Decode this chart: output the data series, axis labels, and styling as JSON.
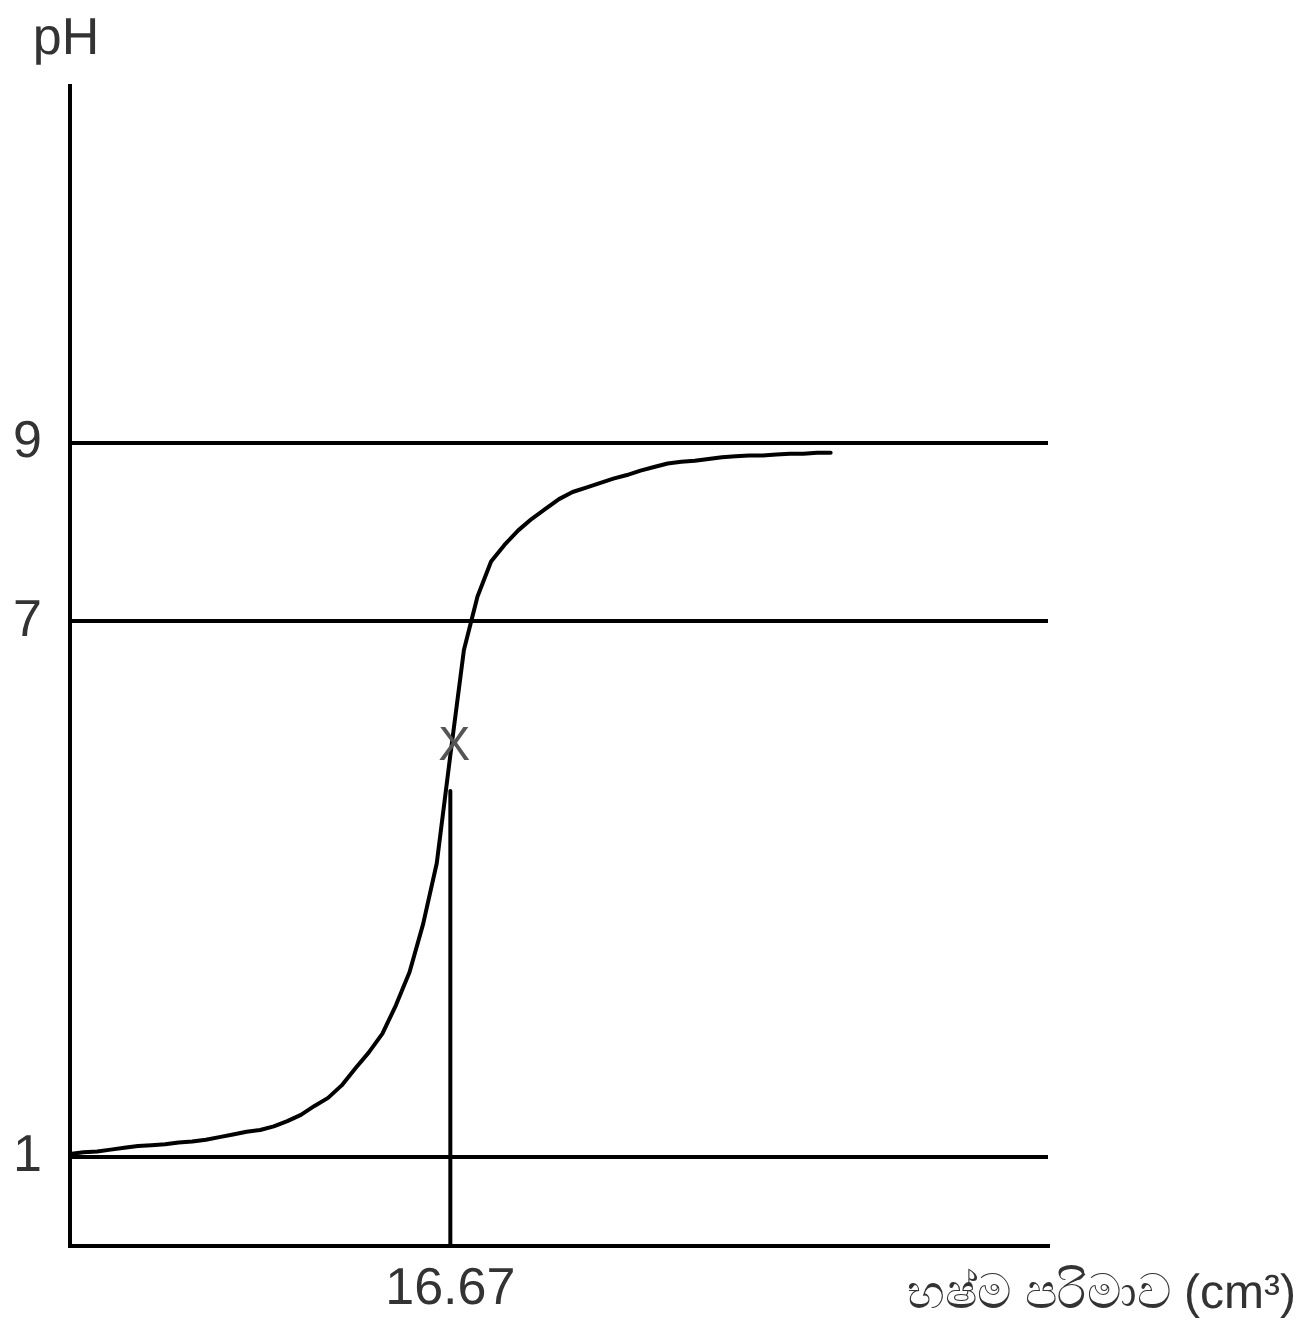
{
  "chart_data": {
    "type": "line",
    "ylabel": "pH",
    "xlabel": "භෂ්ම පරිමාව (cm³)",
    "categories": [
      null,
      null,
      null,
      null,
      null,
      null,
      null,
      null,
      null,
      null,
      null,
      null,
      null,
      null,
      null,
      null,
      null,
      null,
      null,
      null,
      null,
      null,
      null,
      null,
      null,
      null,
      null,
      null,
      "16.67",
      null,
      null,
      null,
      null,
      null,
      null,
      null,
      null,
      null,
      null,
      null,
      null,
      null,
      null,
      null,
      null,
      null,
      null,
      null,
      null,
      null,
      null,
      null,
      null,
      null,
      null,
      null,
      null,
      null,
      null,
      null,
      null,
      null,
      null,
      null,
      null,
      null,
      null,
      null,
      null,
      null,
      null,
      null,
      null
    ],
    "ylim": [
      0,
      13
    ],
    "yticks": [
      1,
      7,
      9
    ],
    "grid": "y",
    "marker": "none",
    "line_style": "solid",
    "annotations": [
      {
        "text": "X",
        "x": "16.67",
        "y": 5.6
      }
    ],
    "series": [
      {
        "color": "#000000",
        "values": [
          1.03,
          1.05,
          1.06,
          1.08,
          1.1,
          1.12,
          1.13,
          1.14,
          1.16,
          1.17,
          1.19,
          1.22,
          1.25,
          1.28,
          1.3,
          1.34,
          1.4,
          1.47,
          1.57,
          1.66,
          1.8,
          1.99,
          2.17,
          2.38,
          2.7,
          3.07,
          3.61,
          4.29,
          5.5,
          6.68,
          7.28,
          7.67,
          7.86,
          8.02,
          8.15,
          8.26,
          8.37,
          8.45,
          8.5,
          8.55,
          8.6,
          8.64,
          8.69,
          8.73,
          8.77,
          8.79,
          8.8,
          8.82,
          8.84,
          8.85,
          8.86,
          8.86,
          8.87,
          8.88,
          8.88,
          8.89,
          8.89,
          null,
          null,
          null,
          null,
          null,
          null,
          null,
          null,
          null,
          null,
          null,
          null,
          null,
          null,
          null,
          null
        ]
      },
      {
        "color": "#000000",
        "x": [
          "16.67",
          "16.67"
        ],
        "values": [
          0,
          5.1
        ]
      }
    ]
  }
}
